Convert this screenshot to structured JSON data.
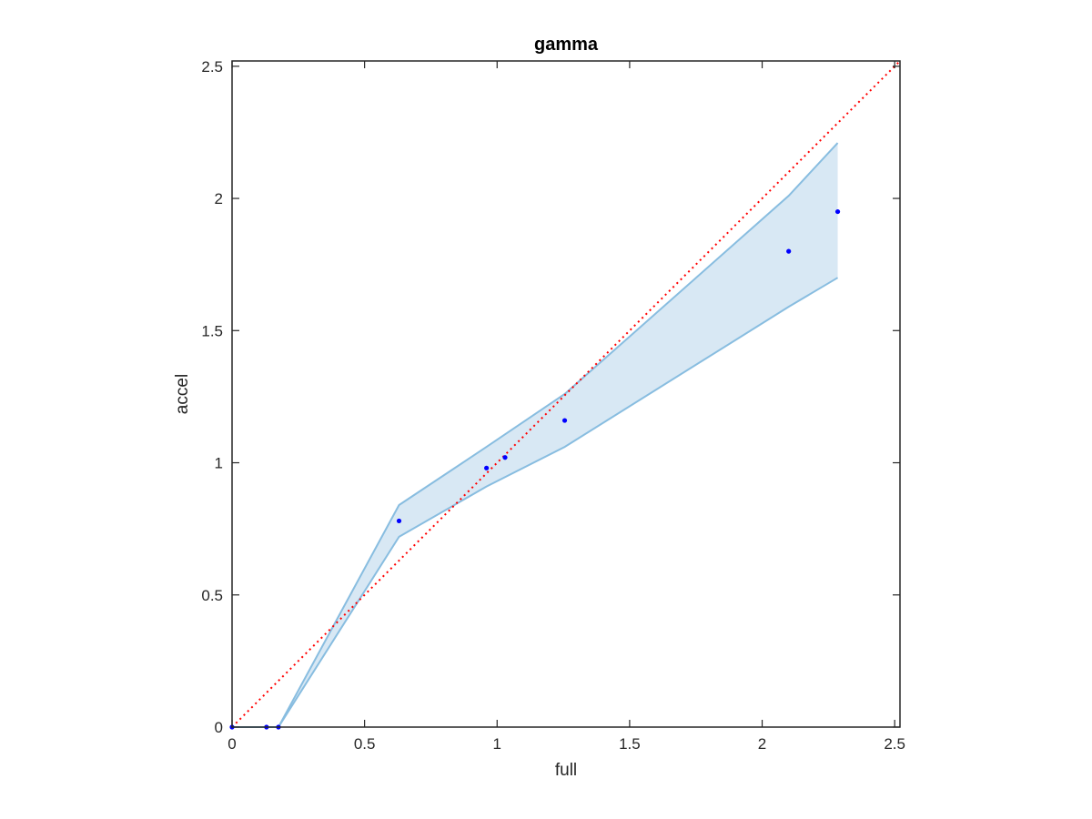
{
  "chart_data": {
    "type": "scatter",
    "title": "gamma",
    "xlabel": "full",
    "ylabel": "accel",
    "xlim": [
      0,
      2.52
    ],
    "ylim": [
      0,
      2.52
    ],
    "xticks": [
      0,
      0.5,
      1,
      1.5,
      2,
      2.5
    ],
    "yticks": [
      0,
      0.5,
      1,
      1.5,
      2,
      2.5
    ],
    "xtick_labels": [
      "0",
      "0.5",
      "1",
      "1.5",
      "2",
      "2.5"
    ],
    "ytick_labels": [
      "0",
      "0.5",
      "1",
      "1.5",
      "2",
      "2.5"
    ],
    "grid": false,
    "points": {
      "x": [
        0,
        0.13,
        0.175,
        0.63,
        0.96,
        1.03,
        1.255,
        2.1,
        2.285
      ],
      "y": [
        0,
        0,
        0,
        0.78,
        0.98,
        1.02,
        1.16,
        1.8,
        1.95
      ]
    },
    "band": {
      "upper": {
        "x": [
          0,
          0.175,
          0.63,
          0.96,
          1.255,
          2.1,
          2.285
        ],
        "y": [
          0,
          0,
          0.84,
          1.06,
          1.26,
          2.01,
          2.21
        ]
      },
      "lower": {
        "x": [
          0,
          0.175,
          0.63,
          0.96,
          1.255,
          2.1,
          2.285
        ],
        "y": [
          0,
          0,
          0.72,
          0.91,
          1.06,
          1.59,
          1.7
        ]
      }
    },
    "reference_line": {
      "x": [
        0,
        2.52
      ],
      "y": [
        0,
        2.52
      ],
      "style": "dotted"
    },
    "colors": {
      "points": "#0000ff",
      "band_fill": "#d8e8f4",
      "band_edge": "#88bde0",
      "reference_line": "#ff0000",
      "axes": "#262626"
    }
  }
}
